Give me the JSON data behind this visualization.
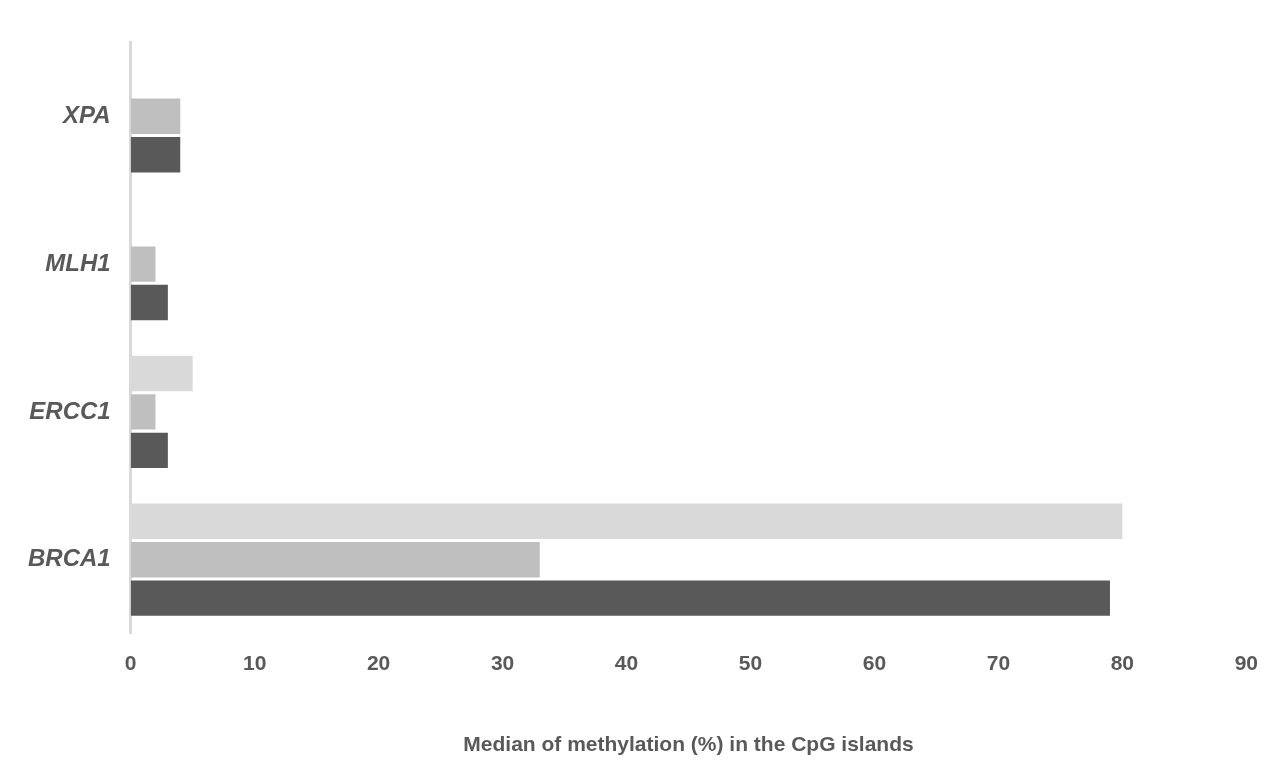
{
  "chart_data": {
    "type": "bar",
    "orientation": "horizontal",
    "xlabel": "Median of methylation (%) in the CpG islands",
    "categories": [
      "XPA",
      "MLH1",
      "ERCC1",
      "BRCA1"
    ],
    "series": [
      {
        "color": "#d9d9d9",
        "values": [
          null,
          null,
          5,
          80
        ]
      },
      {
        "color": "#bfbfbf",
        "values": [
          4,
          2,
          2,
          33
        ]
      },
      {
        "color": "#595959",
        "values": [
          4,
          3,
          3,
          79
        ]
      }
    ],
    "xlim": [
      0,
      90
    ],
    "xticks": [
      0,
      10,
      20,
      30,
      40,
      50,
      60,
      70,
      80,
      90
    ],
    "grid": false,
    "legend": false
  }
}
